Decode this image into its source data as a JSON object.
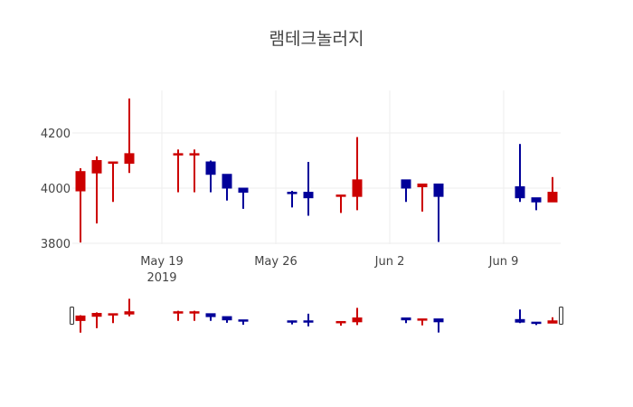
{
  "chart_data": {
    "type": "candlestick",
    "title": "램테크놀러지",
    "xlabel": "",
    "ylabel": "",
    "ylim": [
      3800,
      4330
    ],
    "y_ticks": [
      3800,
      4000,
      4200
    ],
    "x_ticks": [
      {
        "label": "May 19",
        "sublabel": "2019",
        "date": "2019-05-19"
      },
      {
        "label": "May 26",
        "sublabel": "",
        "date": "2019-05-26"
      },
      {
        "label": "Jun 2",
        "sublabel": "",
        "date": "2019-06-02"
      },
      {
        "label": "Jun 9",
        "sublabel": "",
        "date": "2019-06-09"
      }
    ],
    "grid": true,
    "range_slider": true,
    "increasing_color": "#cc0000",
    "decreasing_color": "#000099",
    "x": [
      "2019-05-14",
      "2019-05-15",
      "2019-05-16",
      "2019-05-17",
      "2019-05-20",
      "2019-05-21",
      "2019-05-22",
      "2019-05-23",
      "2019-05-24",
      "2019-05-27",
      "2019-05-28",
      "2019-05-30",
      "2019-05-31",
      "2019-06-03",
      "2019-06-04",
      "2019-06-05",
      "2019-06-10",
      "2019-06-11",
      "2019-06-12"
    ],
    "open": [
      3990,
      4055,
      4090,
      4090,
      4120,
      4120,
      4095,
      4050,
      4000,
      3985,
      3985,
      3970,
      3970,
      4030,
      4005,
      4015,
      4005,
      3965,
      3950
    ],
    "high": [
      4072,
      4115,
      4095,
      4325,
      4140,
      4140,
      4100,
      4050,
      4000,
      3990,
      4095,
      3975,
      4185,
      4030,
      4015,
      4015,
      4160,
      3965,
      4040
    ],
    "low": [
      3803,
      3872,
      3950,
      4055,
      3985,
      3985,
      3985,
      3955,
      3925,
      3930,
      3900,
      3910,
      3920,
      3950,
      3915,
      3805,
      3950,
      3920,
      3950
    ],
    "close": [
      4060,
      4100,
      4095,
      4125,
      4125,
      4125,
      4050,
      4000,
      3985,
      3980,
      3965,
      3975,
      4030,
      4000,
      4015,
      3970,
      3965,
      3950,
      3985
    ]
  }
}
